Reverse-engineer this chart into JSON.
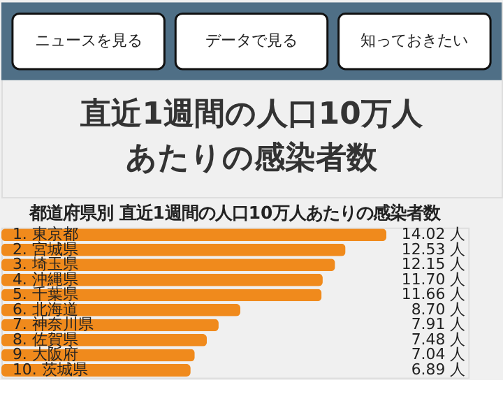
{
  "chart_data": {
    "type": "bar",
    "orientation": "horizontal",
    "title": "直近1週間の人口10万人あたりの感染者数",
    "subtitle": "都道府県別 直近1週間の人口10万人あたりの感染者数",
    "annotations": [
      "ニュースを見る",
      "データで見る",
      "知っておきたい"
    ],
    "categories": [
      "1. 東京都",
      "2. 宮城県",
      "3. 埼玉県",
      "4. 沖縄県",
      "5. 千葉県",
      "6. 北海道",
      "7. 神奈川県",
      "8. 佐賀県",
      "9. 大阪府",
      "10. 茨城県"
    ],
    "values": [
      14.02,
      12.53,
      12.15,
      11.7,
      11.66,
      8.7,
      7.91,
      7.48,
      7.04,
      6.89
    ],
    "value_labels": [
      "14.02 人",
      "12.53 人",
      "12.15 人",
      "11.70 人",
      "11.66 人",
      "8.70 人",
      "7.91 人",
      "7.48 人",
      "7.04 人",
      "6.89 人"
    ],
    "color": "#f08a1c",
    "xlim": [
      0,
      17
    ],
    "tick_labels": "y",
    "grid": false
  }
}
